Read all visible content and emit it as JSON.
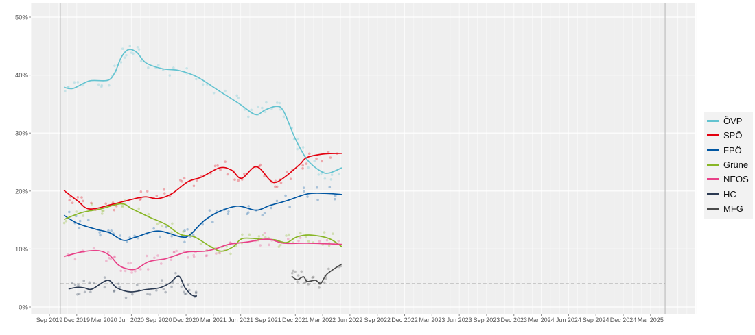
{
  "chart_data": {
    "type": "line",
    "title": "",
    "xlabel": "",
    "ylabel": "",
    "x_unit": "months since Sep 2019",
    "ylim": [
      0,
      50
    ],
    "y_ticks": [
      "0%",
      "10%",
      "20%",
      "30%",
      "40%",
      "50%"
    ],
    "y_tick_values": [
      0,
      10,
      20,
      30,
      40,
      50
    ],
    "x_ticks": [
      "Sep 2019",
      "Dec 2019",
      "Mar 2020",
      "Jun 2020",
      "Sep 2020",
      "Dec 2020",
      "Mar 2021",
      "Jun 2021",
      "Sep 2021",
      "Dec 2021",
      "Mar 2022",
      "Jun 2022",
      "Sep 2022",
      "Dec 2022",
      "Mar 2023",
      "Jun 2023",
      "Sep 2023",
      "Dec 2023",
      "Mar 2024",
      "Jun 2024",
      "Sep 2024",
      "Dec 2024",
      "Mar 2025"
    ],
    "xlim_months": [
      -2,
      71
    ],
    "period_markers_months": [
      1.2,
      67.6
    ],
    "threshold": 4,
    "grid": true,
    "legend_position": "right",
    "series": [
      {
        "name": "ÖVP",
        "color": "#63c3d0",
        "points": [
          [
            1.6,
            37.9
          ],
          [
            2.6,
            37.7
          ],
          [
            4.4,
            39.0
          ],
          [
            6.4,
            39.1
          ],
          [
            7.2,
            40.5
          ],
          [
            7.9,
            43.1
          ],
          [
            8.7,
            44.4
          ],
          [
            9.6,
            43.9
          ],
          [
            10.6,
            42.1
          ],
          [
            12.4,
            41.1
          ],
          [
            14.2,
            40.8
          ],
          [
            16.2,
            39.7
          ],
          [
            18.7,
            37.2
          ],
          [
            20.9,
            35.0
          ],
          [
            22.6,
            33.2
          ],
          [
            23.7,
            34.0
          ],
          [
            24.9,
            34.6
          ],
          [
            25.7,
            33.8
          ],
          [
            27.0,
            29.0
          ],
          [
            28.3,
            25.4
          ],
          [
            29.8,
            23.4
          ],
          [
            30.7,
            23.1
          ],
          [
            32.1,
            24.0
          ]
        ]
      },
      {
        "name": "SPÖ",
        "color": "#e3000f",
        "points": [
          [
            1.6,
            20.1
          ],
          [
            3.1,
            18.3
          ],
          [
            4.4,
            16.9
          ],
          [
            6.9,
            17.7
          ],
          [
            9.4,
            18.7
          ],
          [
            10.6,
            19.0
          ],
          [
            11.9,
            18.7
          ],
          [
            13.4,
            19.5
          ],
          [
            15.2,
            21.6
          ],
          [
            16.7,
            22.4
          ],
          [
            18.7,
            24.0
          ],
          [
            20.0,
            23.6
          ],
          [
            21.1,
            22.2
          ],
          [
            22.7,
            24.2
          ],
          [
            24.2,
            21.9
          ],
          [
            24.9,
            21.5
          ],
          [
            26.0,
            22.6
          ],
          [
            27.5,
            24.6
          ],
          [
            28.3,
            25.8
          ],
          [
            30.2,
            26.4
          ],
          [
            32.1,
            26.5
          ]
        ]
      },
      {
        "name": "FPÖ",
        "color": "#0056a2",
        "points": [
          [
            1.6,
            15.8
          ],
          [
            3.1,
            14.4
          ],
          [
            5.1,
            13.4
          ],
          [
            6.6,
            12.8
          ],
          [
            8.1,
            11.5
          ],
          [
            9.4,
            12.0
          ],
          [
            11.9,
            13.1
          ],
          [
            14.4,
            12.1
          ],
          [
            15.4,
            12.4
          ],
          [
            17.0,
            14.9
          ],
          [
            18.7,
            16.5
          ],
          [
            20.7,
            17.4
          ],
          [
            22.7,
            16.7
          ],
          [
            24.2,
            17.5
          ],
          [
            26.0,
            18.3
          ],
          [
            28.3,
            19.5
          ],
          [
            30.2,
            19.6
          ],
          [
            32.1,
            19.4
          ]
        ]
      },
      {
        "name": "Grüne",
        "color": "#88b626",
        "points": [
          [
            1.6,
            15.1
          ],
          [
            3.6,
            16.3
          ],
          [
            5.6,
            16.9
          ],
          [
            7.9,
            17.8
          ],
          [
            9.1,
            16.9
          ],
          [
            11.1,
            15.4
          ],
          [
            12.7,
            14.3
          ],
          [
            14.4,
            12.5
          ],
          [
            15.9,
            12.1
          ],
          [
            17.7,
            10.4
          ],
          [
            18.9,
            9.6
          ],
          [
            20.2,
            10.4
          ],
          [
            21.2,
            11.8
          ],
          [
            23.2,
            11.7
          ],
          [
            24.7,
            11.6
          ],
          [
            26.0,
            11.1
          ],
          [
            27.2,
            12.1
          ],
          [
            28.7,
            12.4
          ],
          [
            30.7,
            11.8
          ],
          [
            32.1,
            10.4
          ]
        ]
      },
      {
        "name": "NEOS",
        "color": "#e84188",
        "points": [
          [
            1.6,
            8.7
          ],
          [
            3.6,
            9.5
          ],
          [
            5.4,
            9.7
          ],
          [
            6.6,
            8.9
          ],
          [
            7.6,
            7.2
          ],
          [
            8.7,
            6.5
          ],
          [
            9.6,
            6.6
          ],
          [
            10.9,
            7.8
          ],
          [
            12.7,
            8.3
          ],
          [
            13.9,
            8.9
          ],
          [
            15.2,
            9.5
          ],
          [
            17.0,
            9.6
          ],
          [
            18.2,
            10.0
          ],
          [
            19.7,
            10.8
          ],
          [
            21.7,
            11.2
          ],
          [
            24.0,
            11.7
          ],
          [
            25.7,
            11.0
          ],
          [
            28.3,
            11.0
          ],
          [
            32.1,
            10.8
          ]
        ]
      },
      {
        "name": "HC",
        "color": "#2b3a52",
        "points": [
          [
            2.1,
            3.1
          ],
          [
            3.1,
            3.4
          ],
          [
            3.8,
            3.3
          ],
          [
            4.7,
            3.1
          ],
          [
            6.4,
            4.6
          ],
          [
            7.4,
            3.3
          ],
          [
            8.9,
            2.6
          ],
          [
            10.6,
            3.0
          ],
          [
            12.1,
            3.3
          ],
          [
            13.2,
            4.1
          ],
          [
            14.2,
            5.3
          ],
          [
            14.9,
            3.3
          ],
          [
            15.7,
            2.0
          ],
          [
            16.2,
            1.9
          ]
        ]
      },
      {
        "name": "MFG",
        "color": "#4a4a4a",
        "points": [
          [
            26.6,
            5.3
          ],
          [
            27.2,
            4.7
          ],
          [
            27.9,
            5.2
          ],
          [
            28.3,
            4.4
          ],
          [
            29.2,
            4.6
          ],
          [
            29.8,
            4.1
          ],
          [
            30.5,
            5.7
          ],
          [
            32.1,
            7.4
          ]
        ]
      }
    ]
  }
}
